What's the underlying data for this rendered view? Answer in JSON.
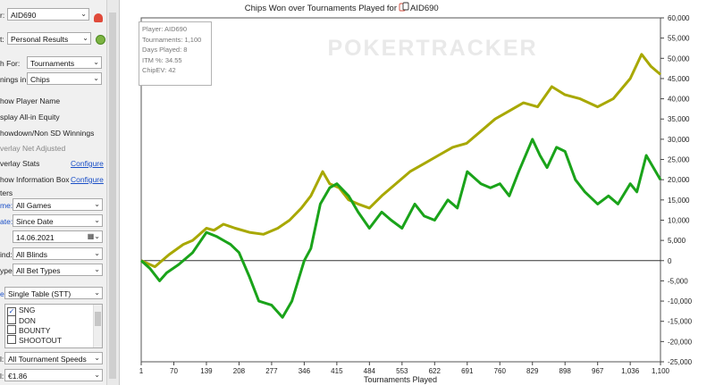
{
  "sidebar": {
    "player_label": "r:",
    "player_value": "AID690",
    "report_label": "t:",
    "report_value": "Personal Results",
    "graph_for_label": "h For:",
    "graph_for_value": "Tournaments",
    "winnings_label": "nings in:",
    "winnings_value": "Chips",
    "opt_player_name": "how Player Name",
    "opt_allin": "splay All-in Equity",
    "opt_showdown": "howdown/Non SD Winnings",
    "opt_overlay_net": "verlay Net Adjusted",
    "opt_overlay_stats": "verlay Stats",
    "opt_info_box": "how Information Box",
    "configure1": "Configure",
    "configure2": "Configure",
    "filters_header": "ters",
    "game_label": "me:",
    "game_value": "All Games",
    "date_label": "ate:",
    "date_value": "Since Date",
    "date_input": "14.06.2021",
    "blinds_label": "ind:",
    "blinds_value": "All Blinds",
    "bettype_label": "ype:",
    "bettype_value": "All Bet Types",
    "table_label": "e:",
    "table_value": "Single Table (STT)",
    "list_items": [
      "SNG",
      "DON",
      "BOUNTY",
      "SHOOTOUT"
    ],
    "speed_label": "l:",
    "speed_value": "All Tournament Speeds",
    "buyin_label": "l:",
    "buyin_value": "€1.86"
  },
  "info_box": {
    "player": "Player: AID690",
    "tournaments": "Tournaments: 1,100",
    "days": "Days Played: 8",
    "itm": "ITM %: 34.55",
    "chipev": "ChipEV: 42"
  },
  "watermark": "POKERTRACKER",
  "chart_data": {
    "type": "line",
    "title": "Chips Won over Tournaments Played for",
    "title_player": "AID690",
    "xlabel": "Tournaments Played",
    "ylabel": "",
    "xlim": [
      1,
      1100
    ],
    "ylim": [
      -25000,
      60000
    ],
    "x_ticks": [
      1,
      70,
      139,
      208,
      277,
      346,
      415,
      484,
      553,
      622,
      691,
      760,
      829,
      898,
      967,
      1036,
      1100
    ],
    "x_tick_labels": [
      "1",
      "70",
      "139",
      "208",
      "277",
      "346",
      "415",
      "484",
      "553",
      "622",
      "691",
      "760",
      "829",
      "898",
      "967",
      "1,036",
      "1,100"
    ],
    "y_ticks": [
      60000,
      55000,
      50000,
      45000,
      40000,
      35000,
      30000,
      25000,
      20000,
      15000,
      10000,
      5000,
      0,
      -5000,
      -10000,
      -15000,
      -20000,
      -25000
    ],
    "y_tick_labels": [
      "60,000",
      "55,000",
      "50,000",
      "45,000",
      "40,000",
      "35,000",
      "30,000",
      "25,000",
      "20,000",
      "15,000",
      "10,000",
      "5,000",
      "0",
      "-5,000",
      "-10,000",
      "-15,000",
      "-20,000",
      "-25,000"
    ],
    "y_axis_side": "right",
    "grid": false,
    "series": [
      {
        "color": "#a8a800",
        "x": [
          1,
          30,
          60,
          90,
          110,
          139,
          155,
          175,
          200,
          230,
          260,
          290,
          315,
          340,
          360,
          385,
          400,
          420,
          440,
          460,
          484,
          510,
          540,
          570,
          600,
          630,
          660,
          690,
          720,
          750,
          780,
          810,
          840,
          870,
          898,
          930,
          967,
          1000,
          1036,
          1060,
          1080,
          1100
        ],
        "y": [
          0,
          -1500,
          1500,
          4000,
          5000,
          8000,
          7500,
          9000,
          8000,
          7000,
          6500,
          8000,
          10000,
          13000,
          16000,
          22000,
          19000,
          18000,
          15000,
          14000,
          13000,
          16000,
          19000,
          22000,
          24000,
          26000,
          28000,
          29000,
          32000,
          35000,
          37000,
          39000,
          38000,
          43000,
          41000,
          40000,
          38000,
          40000,
          45000,
          51000,
          48000,
          46000
        ]
      },
      {
        "color": "#1aa31a",
        "x": [
          1,
          20,
          40,
          55,
          80,
          110,
          139,
          160,
          190,
          208,
          230,
          250,
          277,
          300,
          320,
          346,
          360,
          380,
          400,
          415,
          440,
          460,
          484,
          510,
          530,
          553,
          580,
          600,
          622,
          650,
          670,
          691,
          720,
          740,
          760,
          780,
          800,
          829,
          845,
          860,
          880,
          898,
          920,
          940,
          967,
          990,
          1010,
          1036,
          1050,
          1070,
          1100
        ],
        "y": [
          0,
          -2000,
          -5000,
          -3000,
          -1000,
          2000,
          7000,
          6000,
          4000,
          2000,
          -4000,
          -10000,
          -11000,
          -14000,
          -10000,
          0,
          3000,
          14000,
          18000,
          19000,
          16000,
          12000,
          8000,
          12000,
          10000,
          8000,
          14000,
          11000,
          10000,
          15000,
          13000,
          22000,
          19000,
          18000,
          19000,
          16000,
          22000,
          30000,
          26000,
          23000,
          28000,
          27000,
          20000,
          17000,
          14000,
          16000,
          14000,
          19000,
          17000,
          26000,
          20000
        ]
      }
    ]
  }
}
